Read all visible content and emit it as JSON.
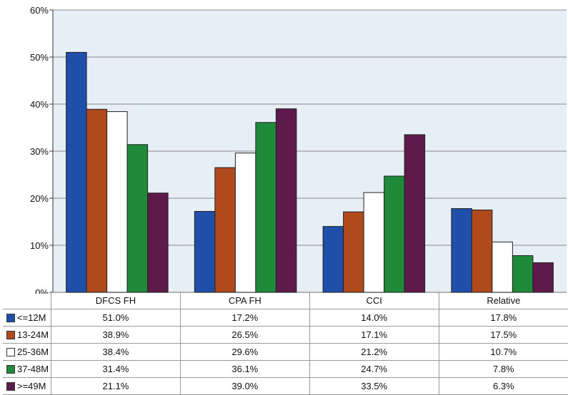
{
  "chart_data": {
    "type": "bar",
    "categories": [
      "DFCS FH",
      "CPA FH",
      "CCI",
      "Relative"
    ],
    "ylim": [
      0,
      60
    ],
    "y_ticks": [
      "0%",
      "10%",
      "20%",
      "30%",
      "40%",
      "50%",
      "60%"
    ],
    "grid": true,
    "legend": "data-table",
    "series": [
      {
        "name": "<=12M",
        "color": "#1f4fa8",
        "values": [
          51.0,
          17.2,
          14.0,
          17.8
        ],
        "labels": [
          "51.0%",
          "17.2%",
          "14.0%",
          "17.8%"
        ]
      },
      {
        "name": "13-24M",
        "color": "#b04a1c",
        "values": [
          38.9,
          26.5,
          17.1,
          17.5
        ],
        "labels": [
          "38.9%",
          "26.5%",
          "17.1%",
          "17.5%"
        ]
      },
      {
        "name": "25-36M",
        "color": "#ffffff",
        "values": [
          38.4,
          29.6,
          21.2,
          10.7
        ],
        "labels": [
          "38.4%",
          "29.6%",
          "21.2%",
          "10.7%"
        ]
      },
      {
        "name": "37-48M",
        "color": "#1f8a3a",
        "values": [
          31.4,
          36.1,
          24.7,
          7.8
        ],
        "labels": [
          "31.4%",
          "36.1%",
          "24.7%",
          "7.8%"
        ]
      },
      {
        "name": ">=49M",
        "color": "#5e1a4a",
        "values": [
          21.1,
          39.0,
          33.5,
          6.3
        ],
        "labels": [
          "21.1%",
          "39.0%",
          "33.5%",
          "6.3%"
        ]
      }
    ]
  },
  "colors": {
    "plot_background": "#e6eef6",
    "gridline": "#8a8a8a"
  }
}
